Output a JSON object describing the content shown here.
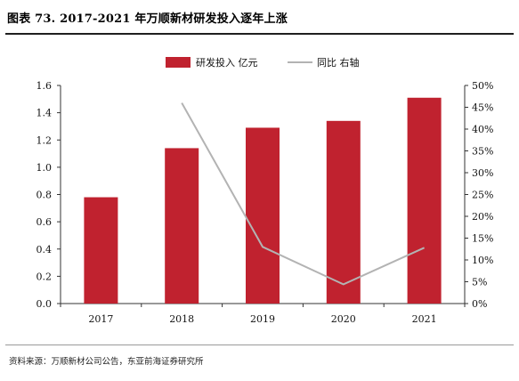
{
  "title": "图表 73. 2017-2021 年万顺新材研发投入逐年上涨",
  "source": "资料来源：万顺新材公司公告，东亚前海证券研究所",
  "colors": {
    "bar": "#c0222f",
    "line": "#b3b3b3"
  },
  "chart_data": {
    "type": "bar",
    "categories": [
      "2017",
      "2018",
      "2019",
      "2020",
      "2021"
    ],
    "series": [
      {
        "name": "研发投入 亿元",
        "type": "bar",
        "axis": "left",
        "values": [
          0.78,
          1.14,
          1.29,
          1.34,
          1.51
        ]
      },
      {
        "name": "同比 右轴",
        "type": "line",
        "axis": "right",
        "values": [
          null,
          0.46,
          0.13,
          0.044,
          0.128
        ]
      }
    ],
    "y_left": {
      "min": 0,
      "max": 1.6,
      "ticks": [
        "0.0",
        "0.2",
        "0.4",
        "0.6",
        "0.8",
        "1.0",
        "1.2",
        "1.4",
        "1.6"
      ]
    },
    "y_right": {
      "min": 0,
      "max": 0.5,
      "ticks": [
        "0%",
        "5%",
        "10%",
        "15%",
        "20%",
        "25%",
        "30%",
        "35%",
        "40%",
        "45%",
        "50%"
      ]
    },
    "legend": "top-center",
    "grid": false
  }
}
